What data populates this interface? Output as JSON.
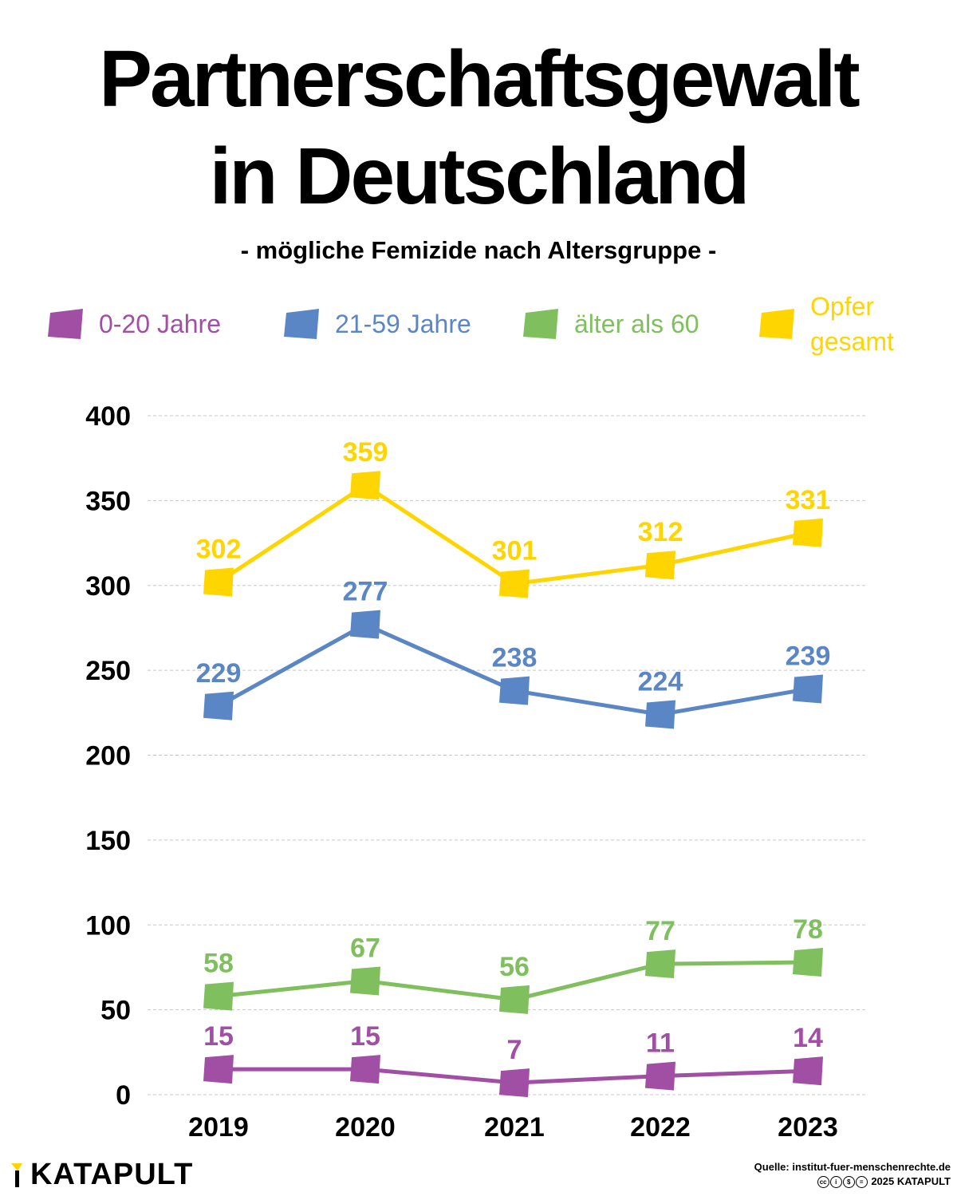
{
  "header": {
    "title_line1": "Partnerschaftsgewalt",
    "title_line2": "in Deutschland",
    "subtitle": "- mögliche Femizide nach Altersgruppe -"
  },
  "legend": [
    {
      "label": "0-20 Jahre",
      "color": "#a14fa5"
    },
    {
      "label": "21-59 Jahre",
      "color": "#5b86c5"
    },
    {
      "label": "älter als 60",
      "color": "#80bf5e"
    },
    {
      "label": "Opfer gesamt",
      "label_lines": [
        "Opfer",
        "gesamt"
      ],
      "color": "#ffd500"
    }
  ],
  "chart_data": {
    "type": "line",
    "title": "Partnerschaftsgewalt in Deutschland",
    "subtitle": "- mögliche Femizide nach Altersgruppe -",
    "xlabel": "",
    "ylabel": "",
    "categories": [
      "2019",
      "2020",
      "2021",
      "2022",
      "2023"
    ],
    "ylim": [
      0,
      400
    ],
    "yticks": [
      0,
      50,
      100,
      150,
      200,
      250,
      300,
      350,
      400
    ],
    "grid": true,
    "legend_position": "top",
    "series": [
      {
        "name": "0-20 Jahre",
        "color": "#a14fa5",
        "values": [
          15,
          15,
          7,
          11,
          14
        ]
      },
      {
        "name": "21-59 Jahre",
        "color": "#5b86c5",
        "values": [
          229,
          277,
          238,
          224,
          239
        ]
      },
      {
        "name": "älter als 60",
        "color": "#80bf5e",
        "values": [
          58,
          67,
          56,
          77,
          78
        ]
      },
      {
        "name": "Opfer gesamt",
        "color": "#ffd500",
        "values": [
          302,
          359,
          301,
          312,
          331
        ]
      }
    ]
  },
  "footer": {
    "brand": "KATAPULT",
    "source": "Quelle: institut-fuer-menschenrechte.de",
    "copyright": "2025 KATAPULT",
    "license_icons": [
      "cc-icon",
      "by-icon",
      "nc-icon",
      "nd-icon"
    ]
  }
}
